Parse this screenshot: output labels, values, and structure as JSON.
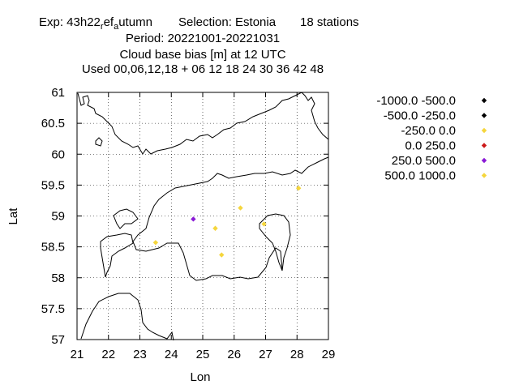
{
  "chart_data": {
    "type": "scatter",
    "title_lines": [
      "Exp: 43h22",
      "Period: 20221001-20221031",
      "Cloud base bias [m] at  12 UTC",
      "Used  00,06,12,18  + 06 12 18 24 30 36 42 48"
    ],
    "title_exp": {
      "base": "Exp: 43h22",
      "sub1": "r",
      "mid": "ef",
      "sub2": "a",
      "end": "utumn"
    },
    "selection": "Selection: Estonia",
    "stations": "18 stations",
    "xlabel": "Lon",
    "ylabel": "Lat",
    "xlim": [
      21,
      29
    ],
    "ylim": [
      57,
      61
    ],
    "xticks": [
      21,
      22,
      23,
      24,
      25,
      26,
      27,
      28,
      29
    ],
    "yticks": [
      57,
      57.5,
      58,
      58.5,
      59,
      59.5,
      60,
      60.5,
      61
    ],
    "ytick_labels": [
      "57",
      "57.5",
      "58",
      "58.5",
      "59",
      "59.5",
      "60",
      "60.5",
      "61"
    ],
    "grid": true,
    "legend_position": "right",
    "legend": [
      {
        "label": "-1000.0 -500.0",
        "color": "#000000"
      },
      {
        "label": "-500.0 -250.0",
        "color": "#000000"
      },
      {
        "label": "-250.0 0.0",
        "color": "#f5d63d"
      },
      {
        "label": "0.0 250.0",
        "color": "#cc1a1a"
      },
      {
        "label": "250.0 500.0",
        "color": "#8a1ad6"
      },
      {
        "label": "500.0 1000.0",
        "color": "#f5d63d"
      }
    ],
    "points": [
      {
        "lon": 24.7,
        "lat": 58.95,
        "category": 4
      },
      {
        "lon": 23.5,
        "lat": 58.57,
        "category": 2
      },
      {
        "lon": 25.4,
        "lat": 58.8,
        "category": 2
      },
      {
        "lon": 25.6,
        "lat": 58.37,
        "category": 2
      },
      {
        "lon": 26.2,
        "lat": 59.13,
        "category": 2
      },
      {
        "lon": 26.95,
        "lat": 58.87,
        "category": 2
      },
      {
        "lon": 28.05,
        "lat": 59.45,
        "category": 2
      }
    ]
  }
}
